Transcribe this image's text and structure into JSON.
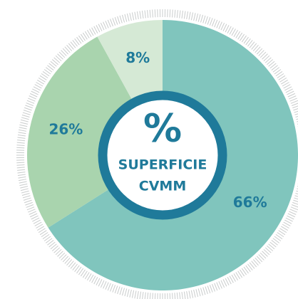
{
  "chart_data": {
    "type": "pie",
    "values": [
      66,
      26,
      8
    ],
    "value_labels": [
      "66%",
      "26%",
      "8%"
    ],
    "colors": [
      "#80c5bd",
      "#a9d4ae",
      "#d5e9d5"
    ],
    "annotations": [
      "%",
      "SUPERFICIE",
      "CVMM"
    ]
  }
}
